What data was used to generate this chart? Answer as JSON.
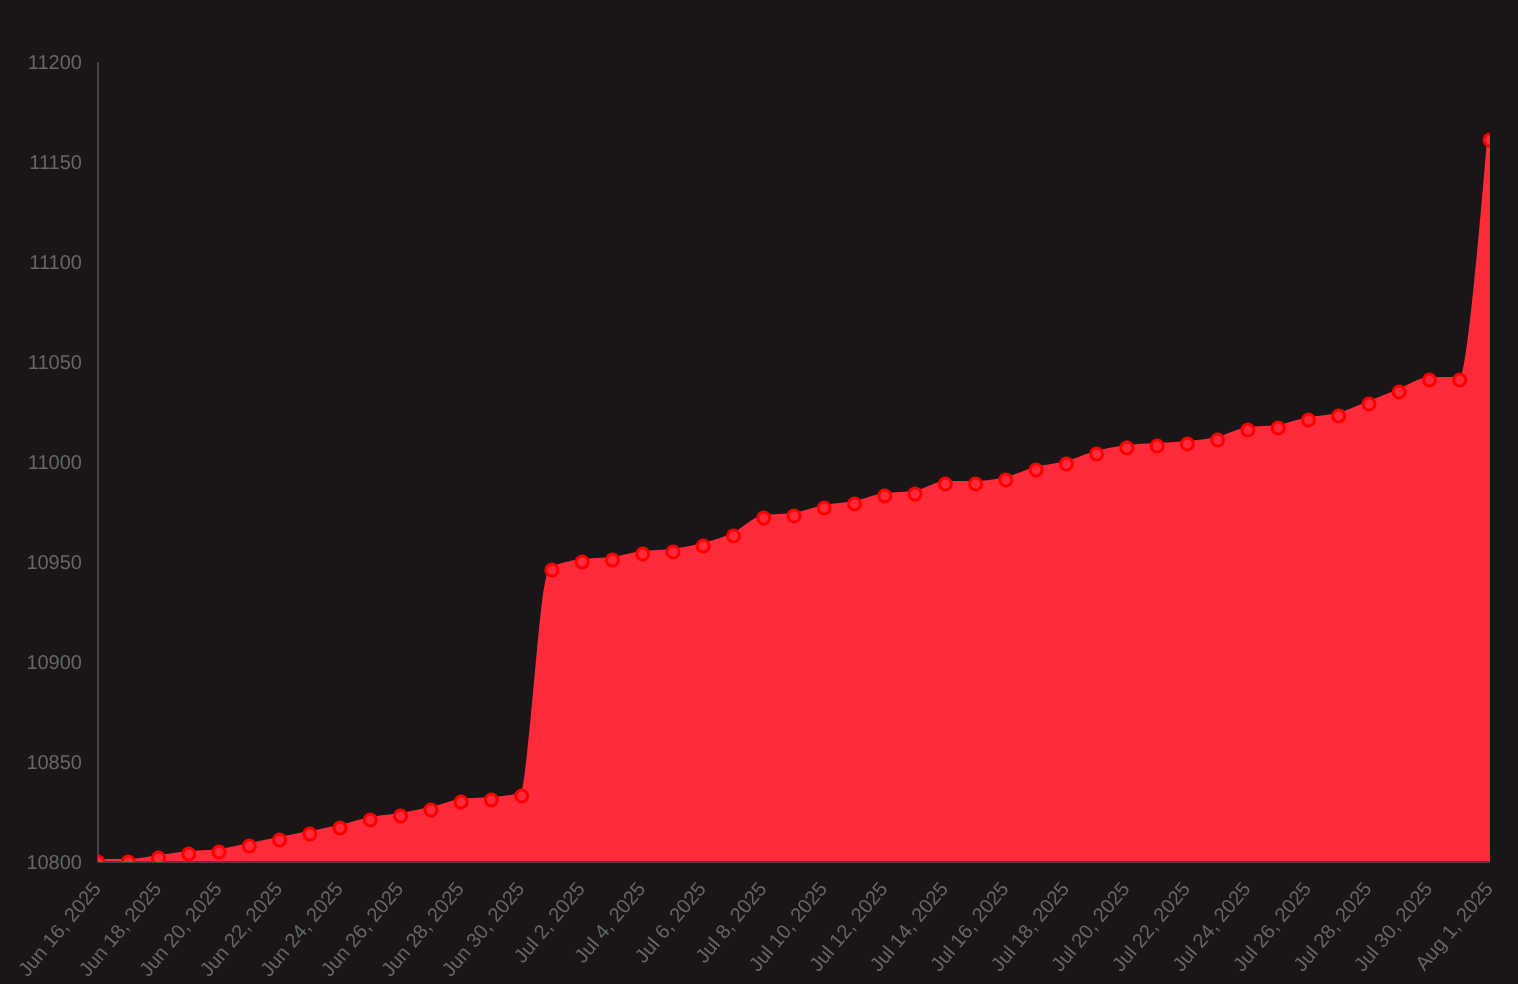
{
  "chart_data": {
    "type": "area",
    "x": [
      "2025-06-16",
      "2025-06-17",
      "2025-06-18",
      "2025-06-19",
      "2025-06-20",
      "2025-06-21",
      "2025-06-22",
      "2025-06-23",
      "2025-06-24",
      "2025-06-25",
      "2025-06-26",
      "2025-06-27",
      "2025-06-28",
      "2025-06-29",
      "2025-06-30",
      "2025-07-01",
      "2025-07-02",
      "2025-07-03",
      "2025-07-04",
      "2025-07-05",
      "2025-07-06",
      "2025-07-07",
      "2025-07-08",
      "2025-07-09",
      "2025-07-10",
      "2025-07-11",
      "2025-07-12",
      "2025-07-13",
      "2025-07-14",
      "2025-07-15",
      "2025-07-16",
      "2025-07-17",
      "2025-07-18",
      "2025-07-19",
      "2025-07-20",
      "2025-07-21",
      "2025-07-22",
      "2025-07-23",
      "2025-07-24",
      "2025-07-25",
      "2025-07-26",
      "2025-07-27",
      "2025-07-28",
      "2025-07-29",
      "2025-07-30",
      "2025-07-31",
      "2025-08-01"
    ],
    "series": [
      {
        "color": "#ff2a3a",
        "values": [
          10800,
          10800,
          10802,
          10804,
          10805,
          10808,
          10811,
          10814,
          10817,
          10821,
          10823,
          10826,
          10830,
          10831,
          10833,
          10946,
          10950,
          10951,
          10954,
          10955,
          10958,
          10963,
          10972,
          10973,
          10977,
          10979,
          10983,
          10984,
          10989,
          10989,
          10991,
          10996,
          10999,
          11004,
          11007,
          11008,
          11009,
          11011,
          11016,
          11017,
          11021,
          11023,
          11029,
          11035,
          11041,
          11041,
          11161
        ]
      }
    ],
    "xlim": [
      "2025-06-16",
      "2025-08-01"
    ],
    "xticks": [
      {
        "value": "2025-06-16",
        "label": "Jun 16, 2025"
      },
      {
        "value": "2025-06-18",
        "label": "Jun 18, 2025"
      },
      {
        "value": "2025-06-20",
        "label": "Jun 20, 2025"
      },
      {
        "value": "2025-06-22",
        "label": "Jun 22, 2025"
      },
      {
        "value": "2025-06-24",
        "label": "Jun 24, 2025"
      },
      {
        "value": "2025-06-26",
        "label": "Jun 26, 2025"
      },
      {
        "value": "2025-06-28",
        "label": "Jun 28, 2025"
      },
      {
        "value": "2025-06-30",
        "label": "Jun 30, 2025"
      },
      {
        "value": "2025-07-02",
        "label": "Jul 2, 2025"
      },
      {
        "value": "2025-07-04",
        "label": "Jul 4, 2025"
      },
      {
        "value": "2025-07-06",
        "label": "Jul 6, 2025"
      },
      {
        "value": "2025-07-08",
        "label": "Jul 8, 2025"
      },
      {
        "value": "2025-07-10",
        "label": "Jul 10, 2025"
      },
      {
        "value": "2025-07-12",
        "label": "Jul 12, 2025"
      },
      {
        "value": "2025-07-14",
        "label": "Jul 14, 2025"
      },
      {
        "value": "2025-07-16",
        "label": "Jul 16, 2025"
      },
      {
        "value": "2025-07-18",
        "label": "Jul 18, 2025"
      },
      {
        "value": "2025-07-20",
        "label": "Jul 20, 2025"
      },
      {
        "value": "2025-07-22",
        "label": "Jul 22, 2025"
      },
      {
        "value": "2025-07-24",
        "label": "Jul 24, 2025"
      },
      {
        "value": "2025-07-26",
        "label": "Jul 26, 2025"
      },
      {
        "value": "2025-07-28",
        "label": "Jul 28, 2025"
      },
      {
        "value": "2025-07-30",
        "label": "Jul 30, 2025"
      },
      {
        "value": "2025-08-01",
        "label": "Aug 1, 2025"
      }
    ],
    "ylim": [
      10800,
      11200
    ],
    "yticks": [
      10800,
      10850,
      10900,
      10950,
      11000,
      11050,
      11100,
      11150,
      11200
    ],
    "marker": "circle"
  }
}
